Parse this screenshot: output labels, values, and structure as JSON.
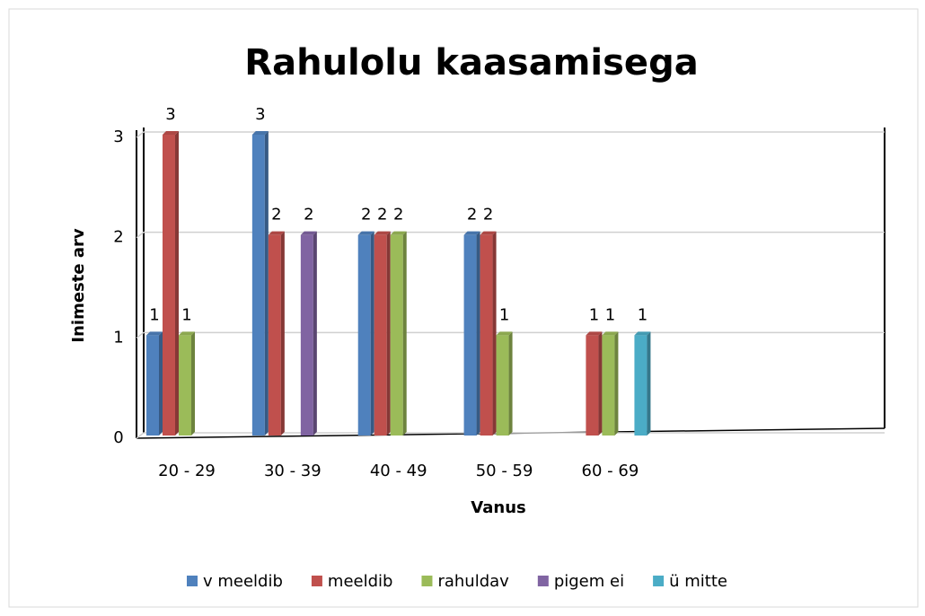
{
  "chart_data": {
    "type": "bar",
    "title": "Rahulolu kaasamisega",
    "x_label": "Vanus",
    "y_label": "Inimeste arv",
    "categories": [
      "20 - 29",
      "30 - 39",
      "40 - 49",
      "50 - 59",
      "60 - 69",
      null,
      null
    ],
    "series": [
      {
        "name": "v meeldib",
        "color": "#4f81bd",
        "values": [
          1,
          3,
          2,
          2,
          null,
          null,
          null
        ]
      },
      {
        "name": "meeldib",
        "color": "#c0504d",
        "values": [
          3,
          2,
          2,
          2,
          1,
          null,
          null
        ]
      },
      {
        "name": "rahuldav",
        "color": "#9bbb59",
        "values": [
          1,
          null,
          2,
          1,
          1,
          null,
          null
        ]
      },
      {
        "name": "pigem ei",
        "color": "#8064a2",
        "values": [
          null,
          2,
          null,
          null,
          null,
          null,
          null
        ]
      },
      {
        "name": "ü mitte",
        "color": "#4bacc6",
        "values": [
          null,
          null,
          null,
          null,
          1,
          null,
          null
        ]
      }
    ],
    "ylim": [
      0,
      3
    ],
    "yticks": [
      0,
      1,
      2,
      3
    ],
    "grid": true,
    "legend": "bottom"
  }
}
